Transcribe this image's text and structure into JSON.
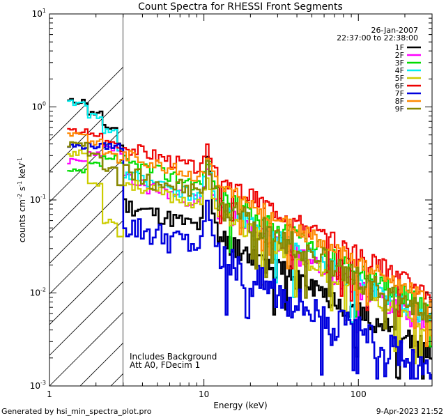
{
  "chart_data": {
    "type": "line",
    "title": "Count Spectra for RHESSI Front Segments",
    "xlabel": "Energy (keV)",
    "ylabel_main": "counts cm",
    "ylabel_sup1": "-2",
    "ylabel_mid": " s",
    "ylabel_sup2": "-1",
    "ylabel_end": " keV",
    "ylabel_sup3": "-1",
    "xscale": "log",
    "yscale": "log",
    "xlim": [
      1,
      300
    ],
    "ylim": [
      0.001,
      10
    ],
    "x_ticks": [
      {
        "value": 1,
        "label": "1"
      },
      {
        "value": 10,
        "label": "10"
      },
      {
        "value": 100,
        "label": "100"
      }
    ],
    "y_ticks": [
      {
        "value": 0.001,
        "base": "10",
        "exp": "-3"
      },
      {
        "value": 0.01,
        "base": "10",
        "exp": "-2"
      },
      {
        "value": 0.1,
        "base": "10",
        "exp": "-1"
      },
      {
        "value": 1,
        "base": "10",
        "exp": "0"
      },
      {
        "value": 10,
        "base": "10",
        "exp": "1"
      }
    ],
    "date": "26-Jan-2007",
    "time_range": "22:37:00 to 22:38:00",
    "hatch_region_max_energy": 3,
    "annotation_lines": [
      "Includes Background",
      "Att A0, FDecim 1"
    ],
    "footer_left": "Generated by hsi_min_spectra_plot.pro",
    "footer_right": "9-Apr-2023 21:52",
    "series": [
      {
        "name": "1F",
        "color": "#000000",
        "width": 2.6,
        "base": 0.026,
        "peak": 0.22,
        "noise": 0.35,
        "low": [
          1.15,
          0.85,
          0.6,
          0.4
        ],
        "seed": 11
      },
      {
        "name": "2F",
        "color": "#ff00ff",
        "width": 2.2,
        "base": 0.048,
        "peak": 0.12,
        "noise": 0.3,
        "low": [
          0.26,
          0.32,
          0.36,
          0.32
        ],
        "seed": 23
      },
      {
        "name": "3F",
        "color": "#00dd00",
        "width": 2.2,
        "base": 0.075,
        "peak": 0.13,
        "noise": 0.3,
        "low": [
          0.2,
          0.24,
          0.28,
          0.24
        ],
        "seed": 37
      },
      {
        "name": "4F",
        "color": "#00eeee",
        "width": 2.2,
        "base": 0.055,
        "peak": 0.15,
        "noise": 0.3,
        "low": [
          1.1,
          0.8,
          0.55,
          0.35
        ],
        "seed": 41
      },
      {
        "name": "5F",
        "color": "#cccc00",
        "width": 2.2,
        "base": 0.045,
        "peak": 0.09,
        "noise": 0.25,
        "low": [
          0.32,
          0.15,
          0.06,
          0.04
        ],
        "seed": 53
      },
      {
        "name": "6F",
        "color": "#ee0000",
        "width": 2.2,
        "base": 0.11,
        "peak": 0.14,
        "noise": 0.28,
        "low": [
          0.55,
          0.5,
          0.42,
          0.36
        ],
        "seed": 67
      },
      {
        "name": "7F",
        "color": "#0000dd",
        "width": 2.6,
        "base": 0.016,
        "peak": 0.06,
        "noise": 0.55,
        "low": [
          0.38,
          0.38,
          0.38,
          0.38
        ],
        "seed": 79
      },
      {
        "name": "8F",
        "color": "#ff8800",
        "width": 2.2,
        "base": 0.09,
        "peak": 0.12,
        "noise": 0.25,
        "low": [
          0.52,
          0.42,
          0.32,
          0.26
        ],
        "seed": 83
      },
      {
        "name": "9F",
        "color": "#888800",
        "width": 2.6,
        "base": 0.06,
        "peak": 0.12,
        "noise": 0.4,
        "low": [
          0.4,
          0.3,
          0.22,
          0.15
        ],
        "seed": 97
      }
    ]
  }
}
